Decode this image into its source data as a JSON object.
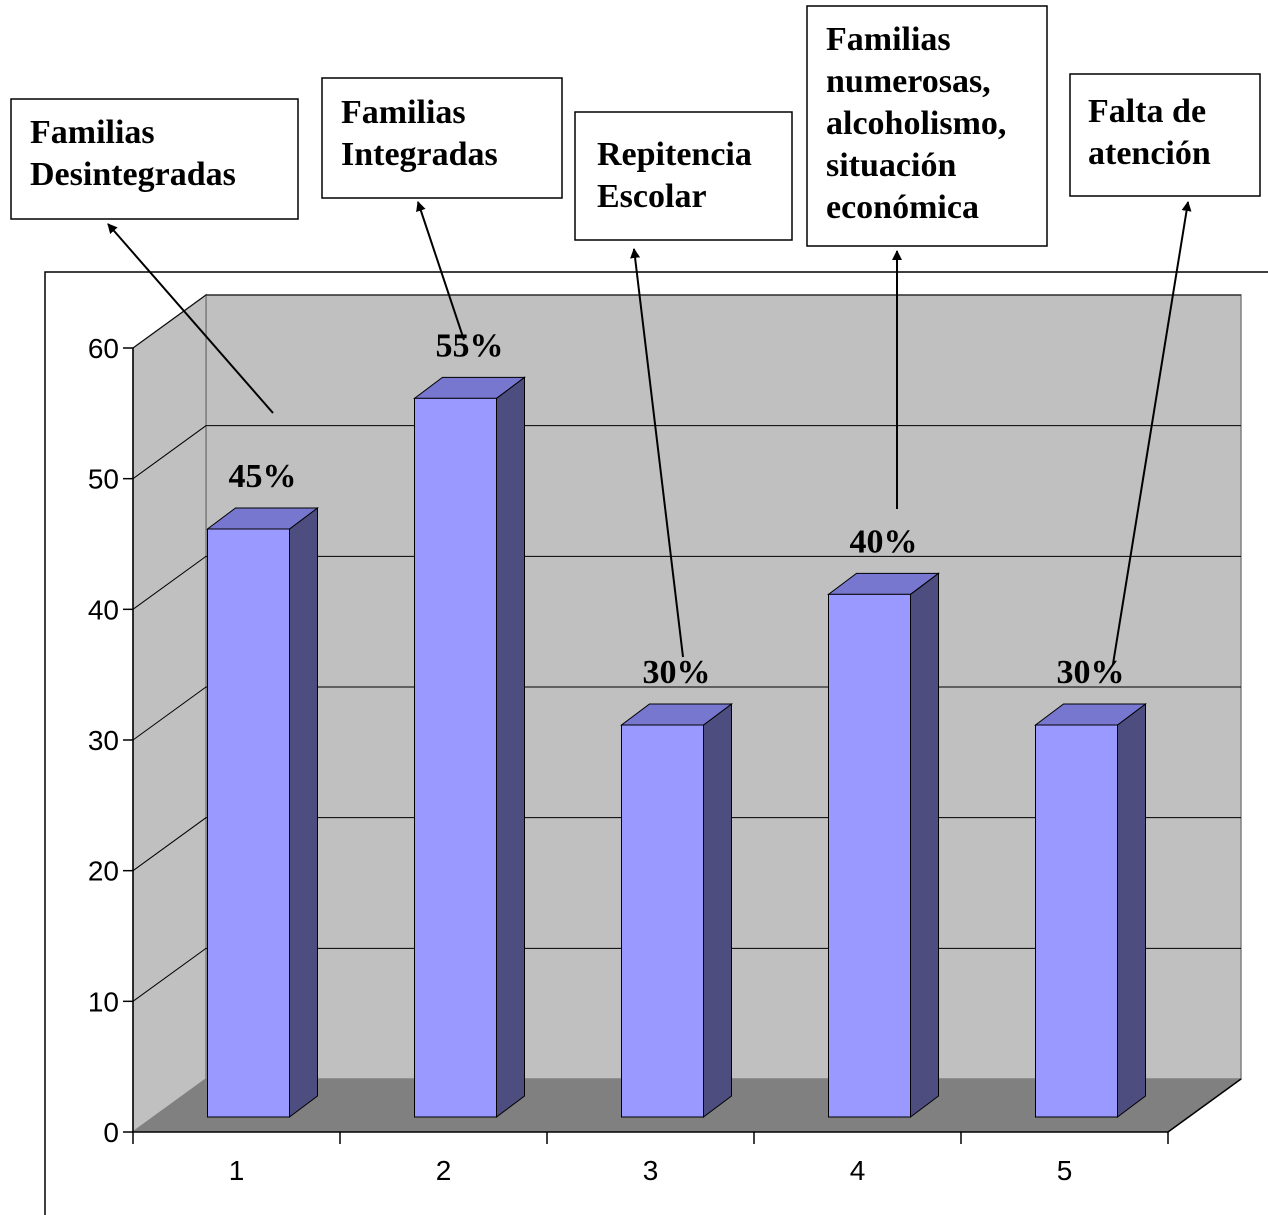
{
  "chart_data": {
    "type": "bar",
    "categories": [
      "1",
      "2",
      "3",
      "4",
      "5"
    ],
    "values": [
      45,
      55,
      30,
      40,
      30
    ],
    "data_labels": [
      "45%",
      "55%",
      "30%",
      "40%",
      "30%"
    ],
    "ylim": [
      0,
      60
    ],
    "yticks": [
      "0",
      "10",
      "20",
      "30",
      "40",
      "50",
      "60"
    ],
    "xlabel": "",
    "ylabel": "",
    "title": "",
    "grid": true,
    "three_d": true,
    "colors": {
      "bar_front": "#9999ff",
      "bar_top": "#7777d0",
      "bar_side": "#4d4d80",
      "back_wall": "#c0c0c0",
      "floor": "#808080"
    },
    "annotations": [
      {
        "lines": [
          "Familias",
          "Desintegradas"
        ]
      },
      {
        "lines": [
          "Familias",
          "Integradas"
        ]
      },
      {
        "lines": [
          "Repitencia",
          "Escolar"
        ]
      },
      {
        "lines": [
          "Familias",
          "numerosas,",
          "alcoholismo,",
          "situación",
          "económica"
        ]
      },
      {
        "lines": [
          "Falta de",
          "atención"
        ]
      }
    ]
  }
}
